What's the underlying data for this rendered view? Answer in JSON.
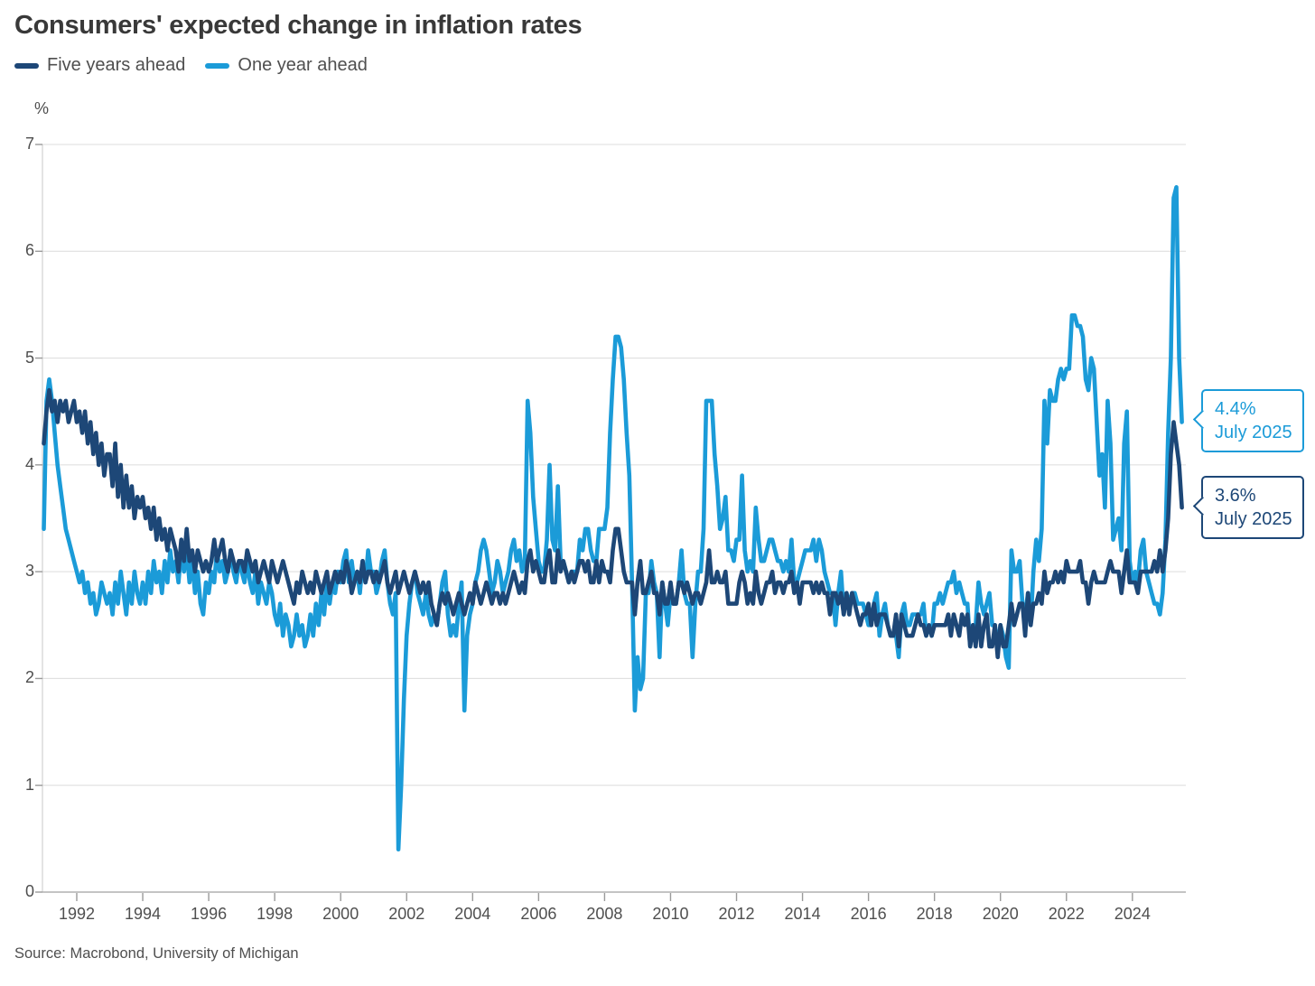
{
  "title": "Consumers' expected change in inflation rates",
  "unit_label": "%",
  "source": "Source: Macrobond, University of Michigan",
  "colors": {
    "five_years": "#1d4777",
    "one_year": "#1b9bd8",
    "gridline": "#dcdcdc",
    "axis_line": "#b0b0b0",
    "y_axis_line": "#c8c8c8",
    "tick": "#9a9a9a",
    "text": "#4f4f4f",
    "title_text": "#393939"
  },
  "legend": [
    {
      "label": "Five years ahead",
      "color": "#1d4777"
    },
    {
      "label": "One year ahead",
      "color": "#1b9bd8"
    }
  ],
  "callouts": [
    {
      "value": "4.4%",
      "date": "July 2025",
      "color": "#1b9bd8",
      "series": "One year ahead"
    },
    {
      "value": "3.6%",
      "date": "July 2025",
      "color": "#1d4777",
      "series": "Five years ahead"
    }
  ],
  "chart_data": {
    "type": "line",
    "title": "Consumers' expected change in inflation rates",
    "ylabel": "%",
    "grid": "horizontal",
    "legend_position": "top-left",
    "frequency": "monthly",
    "start": "1991-01",
    "end": "2025-07",
    "start_year": 1991,
    "x_axis": {
      "min": 1990.96,
      "max": 2025.62,
      "ticks": [
        1992,
        1994,
        1996,
        1998,
        2000,
        2002,
        2004,
        2006,
        2008,
        2010,
        2012,
        2014,
        2016,
        2018,
        2020,
        2022,
        2024
      ]
    },
    "y_axis": {
      "min": 0,
      "max": 7,
      "ticks": [
        0,
        1,
        2,
        3,
        4,
        5,
        6,
        7
      ]
    },
    "series": [
      {
        "name": "Five years ahead",
        "color": "#1d4777",
        "last_label": "3.6% July 2025",
        "values": [
          4.2,
          4.5,
          4.7,
          4.5,
          4.6,
          4.4,
          4.6,
          4.5,
          4.6,
          4.4,
          4.5,
          4.6,
          4.4,
          4.5,
          4.3,
          4.5,
          4.2,
          4.4,
          4.1,
          4.3,
          4.0,
          4.2,
          3.9,
          4.1,
          4.1,
          3.8,
          4.2,
          3.7,
          4.0,
          3.6,
          3.9,
          3.6,
          3.8,
          3.5,
          3.7,
          3.6,
          3.7,
          3.5,
          3.6,
          3.4,
          3.6,
          3.3,
          3.5,
          3.3,
          3.4,
          3.2,
          3.4,
          3.3,
          3.2,
          3.0,
          3.3,
          3.1,
          3.4,
          3.1,
          3.2,
          3.0,
          3.2,
          3.1,
          3.0,
          3.1,
          3.0,
          3.1,
          3.3,
          3.1,
          3.2,
          3.3,
          3.1,
          3.0,
          3.2,
          3.1,
          3.0,
          3.1,
          3.1,
          3.0,
          3.2,
          3.1,
          3.0,
          3.1,
          2.9,
          3.0,
          3.1,
          3.0,
          2.9,
          3.1,
          3.0,
          2.9,
          3.0,
          3.1,
          3.0,
          2.9,
          2.8,
          2.7,
          2.9,
          2.8,
          3.0,
          2.9,
          2.8,
          2.9,
          2.8,
          3.0,
          2.9,
          2.8,
          2.9,
          3.0,
          2.8,
          2.9,
          3.0,
          2.9,
          3.0,
          2.9,
          3.1,
          3.0,
          2.8,
          2.9,
          3.0,
          2.9,
          3.1,
          2.9,
          3.0,
          3.0,
          2.9,
          3.0,
          2.9,
          3.0,
          3.1,
          2.9,
          2.8,
          2.9,
          3.0,
          2.8,
          2.9,
          3.0,
          2.9,
          2.8,
          2.9,
          3.0,
          2.9,
          2.8,
          2.9,
          2.8,
          2.9,
          2.7,
          2.6,
          2.5,
          2.7,
          2.8,
          2.7,
          2.8,
          2.7,
          2.6,
          2.7,
          2.8,
          2.7,
          2.6,
          2.7,
          2.8,
          2.7,
          2.9,
          2.8,
          2.7,
          2.8,
          2.9,
          2.8,
          2.7,
          2.8,
          2.8,
          2.7,
          2.8,
          2.7,
          2.8,
          2.9,
          3.0,
          2.9,
          2.8,
          2.9,
          2.8,
          3.1,
          3.2,
          3.0,
          3.1,
          3.0,
          2.9,
          2.9,
          3.1,
          3.2,
          2.9,
          2.9,
          3.2,
          3.0,
          3.1,
          3.0,
          2.9,
          3.0,
          2.9,
          3.0,
          3.1,
          3.1,
          3.0,
          3.1,
          2.9,
          2.9,
          3.1,
          2.9,
          3.1,
          3.0,
          3.0,
          2.9,
          3.2,
          3.4,
          3.4,
          3.2,
          3.0,
          2.9,
          2.9,
          2.9,
          2.6,
          2.9,
          3.1,
          2.8,
          2.8,
          2.9,
          3.0,
          2.8,
          2.8,
          2.6,
          2.9,
          2.7,
          2.7,
          2.9,
          2.7,
          2.7,
          2.9,
          2.9,
          2.8,
          2.9,
          2.8,
          2.7,
          2.8,
          2.8,
          2.7,
          2.8,
          2.9,
          3.2,
          2.9,
          2.9,
          3.0,
          2.9,
          2.9,
          3.0,
          2.7,
          2.7,
          2.7,
          2.7,
          2.9,
          3.0,
          2.9,
          2.7,
          2.8,
          2.7,
          3.0,
          2.8,
          2.7,
          2.8,
          2.9,
          2.9,
          3.0,
          2.8,
          2.9,
          2.9,
          2.8,
          2.9,
          2.9,
          3.0,
          2.8,
          2.9,
          2.7,
          2.9,
          2.9,
          2.9,
          2.9,
          2.8,
          2.9,
          2.8,
          2.9,
          2.8,
          2.8,
          2.6,
          2.8,
          2.8,
          2.7,
          2.8,
          2.6,
          2.8,
          2.6,
          2.8,
          2.7,
          2.6,
          2.5,
          2.6,
          2.6,
          2.7,
          2.5,
          2.7,
          2.5,
          2.6,
          2.6,
          2.6,
          2.5,
          2.4,
          2.4,
          2.6,
          2.3,
          2.6,
          2.5,
          2.4,
          2.4,
          2.4,
          2.5,
          2.6,
          2.5,
          2.5,
          2.4,
          2.5,
          2.4,
          2.5,
          2.5,
          2.5,
          2.5,
          2.5,
          2.6,
          2.4,
          2.6,
          2.5,
          2.4,
          2.6,
          2.5,
          2.6,
          2.3,
          2.5,
          2.3,
          2.6,
          2.3,
          2.5,
          2.6,
          2.3,
          2.3,
          2.5,
          2.2,
          2.5,
          2.3,
          2.3,
          2.5,
          2.7,
          2.5,
          2.6,
          2.7,
          2.7,
          2.4,
          2.8,
          2.5,
          2.7,
          2.7,
          2.8,
          2.7,
          3.0,
          2.8,
          2.9,
          2.9,
          3.0,
          2.9,
          3.0,
          2.9,
          3.1,
          3.0,
          3.0,
          3.0,
          3.0,
          3.1,
          2.9,
          2.9,
          2.7,
          2.9,
          3.0,
          2.9,
          2.9,
          2.9,
          2.9,
          3.0,
          3.1,
          3.0,
          3.0,
          3.0,
          2.8,
          3.0,
          3.2,
          2.9,
          2.9,
          2.9,
          2.8,
          3.0,
          3.0,
          3.0,
          3.0,
          3.0,
          3.1,
          3.0,
          3.2,
          3.0,
          3.2,
          3.5,
          4.1,
          4.4,
          4.2,
          4.0,
          3.6
        ]
      },
      {
        "name": "One year ahead",
        "color": "#1b9bd8",
        "last_label": "4.4% July 2025",
        "values": [
          3.4,
          4.6,
          4.8,
          4.6,
          4.3,
          4.0,
          3.8,
          3.6,
          3.4,
          3.3,
          3.2,
          3.1,
          3.0,
          2.9,
          3.0,
          2.8,
          2.9,
          2.7,
          2.8,
          2.6,
          2.7,
          2.9,
          2.8,
          2.7,
          2.8,
          2.6,
          2.9,
          2.7,
          3.0,
          2.8,
          2.6,
          2.9,
          2.7,
          3.0,
          2.8,
          2.7,
          2.9,
          2.7,
          3.0,
          2.8,
          3.1,
          2.9,
          3.0,
          2.8,
          3.1,
          2.9,
          3.2,
          3.0,
          3.1,
          2.9,
          3.2,
          3.0,
          3.2,
          2.9,
          3.1,
          2.8,
          3.0,
          2.7,
          2.6,
          2.9,
          2.8,
          3.0,
          2.9,
          3.2,
          3.0,
          3.1,
          2.9,
          3.0,
          3.2,
          3.0,
          2.9,
          3.1,
          3.0,
          2.9,
          3.1,
          2.9,
          2.8,
          3.0,
          2.7,
          2.9,
          2.8,
          2.7,
          2.9,
          2.8,
          2.6,
          2.5,
          2.7,
          2.4,
          2.6,
          2.5,
          2.3,
          2.4,
          2.6,
          2.4,
          2.5,
          2.3,
          2.4,
          2.6,
          2.4,
          2.7,
          2.5,
          2.8,
          2.6,
          2.9,
          2.7,
          2.9,
          2.8,
          3.0,
          2.9,
          3.1,
          3.2,
          2.9,
          3.1,
          2.9,
          3.0,
          2.8,
          3.1,
          2.9,
          3.2,
          3.0,
          3.0,
          2.8,
          2.9,
          3.1,
          3.2,
          2.9,
          2.7,
          2.6,
          2.8,
          0.4,
          1.0,
          1.8,
          2.4,
          2.7,
          2.9,
          3.0,
          2.8,
          2.7,
          2.6,
          2.8,
          2.6,
          2.5,
          2.6,
          2.5,
          2.7,
          2.9,
          3.0,
          2.6,
          2.4,
          2.5,
          2.4,
          2.7,
          2.9,
          1.7,
          2.4,
          2.6,
          2.7,
          2.9,
          3.0,
          3.2,
          3.3,
          3.2,
          3.0,
          2.8,
          2.9,
          3.1,
          3.0,
          2.8,
          2.9,
          3.0,
          3.2,
          3.3,
          3.1,
          3.2,
          3.0,
          3.1,
          4.6,
          4.3,
          3.7,
          3.4,
          3.1,
          3.0,
          3.0,
          3.3,
          4.0,
          3.3,
          3.2,
          3.8,
          3.1,
          3.1,
          3.0,
          2.9,
          3.0,
          3.0,
          3.0,
          3.3,
          3.2,
          3.4,
          3.4,
          3.2,
          3.1,
          3.1,
          3.4,
          3.4,
          3.4,
          3.6,
          4.3,
          4.8,
          5.2,
          5.2,
          5.1,
          4.8,
          4.3,
          3.9,
          2.9,
          1.7,
          2.2,
          1.9,
          2.0,
          2.8,
          2.8,
          3.1,
          2.9,
          2.8,
          2.2,
          2.9,
          2.7,
          2.5,
          2.8,
          2.7,
          2.7,
          2.9,
          3.2,
          2.8,
          2.7,
          2.7,
          2.2,
          2.7,
          3.0,
          3.0,
          3.4,
          4.6,
          4.6,
          4.6,
          4.1,
          3.8,
          3.4,
          3.5,
          3.7,
          3.2,
          3.2,
          3.1,
          3.3,
          3.3,
          3.9,
          3.2,
          3.0,
          3.1,
          3.0,
          3.6,
          3.3,
          3.1,
          3.1,
          3.2,
          3.3,
          3.3,
          3.2,
          3.1,
          3.1,
          3.0,
          3.1,
          3.0,
          3.3,
          2.9,
          2.9,
          3.0,
          3.1,
          3.2,
          3.2,
          3.2,
          3.3,
          3.1,
          3.3,
          3.2,
          3.0,
          2.9,
          2.8,
          2.8,
          2.5,
          2.8,
          3.0,
          2.6,
          2.8,
          2.7,
          2.8,
          2.8,
          2.7,
          2.7,
          2.7,
          2.6,
          2.5,
          2.5,
          2.7,
          2.8,
          2.4,
          2.6,
          2.7,
          2.5,
          2.4,
          2.4,
          2.4,
          2.2,
          2.6,
          2.7,
          2.5,
          2.5,
          2.6,
          2.6,
          2.6,
          2.6,
          2.7,
          2.4,
          2.5,
          2.4,
          2.7,
          2.7,
          2.8,
          2.7,
          2.8,
          2.9,
          2.9,
          3.0,
          2.8,
          2.9,
          2.8,
          2.7,
          2.7,
          2.3,
          2.5,
          2.5,
          2.9,
          2.7,
          2.6,
          2.7,
          2.8,
          2.5,
          2.5,
          2.3,
          2.5,
          2.4,
          2.2,
          2.1,
          3.2,
          3.0,
          3.0,
          3.1,
          2.7,
          2.6,
          2.8,
          2.5,
          3.0,
          3.3,
          3.1,
          3.4,
          4.6,
          4.2,
          4.7,
          4.6,
          4.6,
          4.8,
          4.9,
          4.8,
          4.9,
          4.9,
          5.4,
          5.4,
          5.3,
          5.3,
          5.2,
          4.8,
          4.7,
          5.0,
          4.9,
          4.4,
          3.9,
          4.1,
          3.6,
          4.6,
          4.2,
          3.3,
          3.4,
          3.5,
          3.2,
          4.2,
          4.5,
          3.1,
          2.9,
          3.0,
          2.9,
          3.2,
          3.3,
          3.0,
          2.9,
          2.8,
          2.7,
          2.7,
          2.6,
          2.8,
          3.3,
          4.3,
          5.0,
          6.5,
          6.6,
          5.0,
          4.4
        ]
      }
    ]
  }
}
